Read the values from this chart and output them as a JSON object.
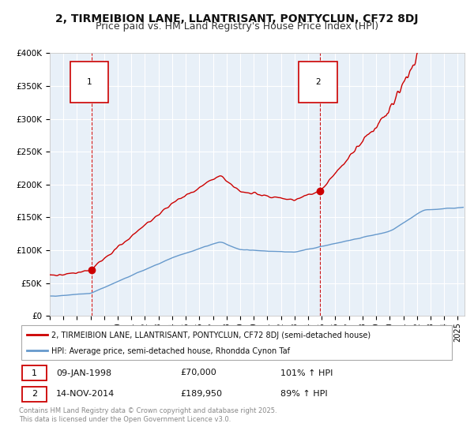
{
  "title": "2, TIRMEIBION LANE, LLANTRISANT, PONTYCLUN, CF72 8DJ",
  "subtitle": "Price paid vs. HM Land Registry's House Price Index (HPI)",
  "title_fontsize": 10,
  "subtitle_fontsize": 9,
  "background_color": "#ffffff",
  "plot_bg_color": "#e8f0f8",
  "grid_color": "#ffffff",
  "red_color": "#cc0000",
  "blue_color": "#6699cc",
  "dashed_color": "#cc0000",
  "sale1_date": 1998.05,
  "sale1_price": 70000,
  "sale1_label": "1",
  "sale2_date": 2014.87,
  "sale2_price": 189950,
  "sale2_label": "2",
  "legend1": "2, TIRMEIBION LANE, LLANTRISANT, PONTYCLUN, CF72 8DJ (semi-detached house)",
  "legend2": "HPI: Average price, semi-detached house, Rhondda Cynon Taf",
  "note1_num": "1",
  "note1_date": "09-JAN-1998",
  "note1_price": "£70,000",
  "note1_hpi": "101% ↑ HPI",
  "note2_num": "2",
  "note2_date": "14-NOV-2014",
  "note2_price": "£189,950",
  "note2_hpi": "89% ↑ HPI",
  "footer": "Contains HM Land Registry data © Crown copyright and database right 2025.\nThis data is licensed under the Open Government Licence v3.0.",
  "ylim_max": 400000,
  "ylim_min": 0,
  "xlim_min": 1995.0,
  "xlim_max": 2025.5
}
